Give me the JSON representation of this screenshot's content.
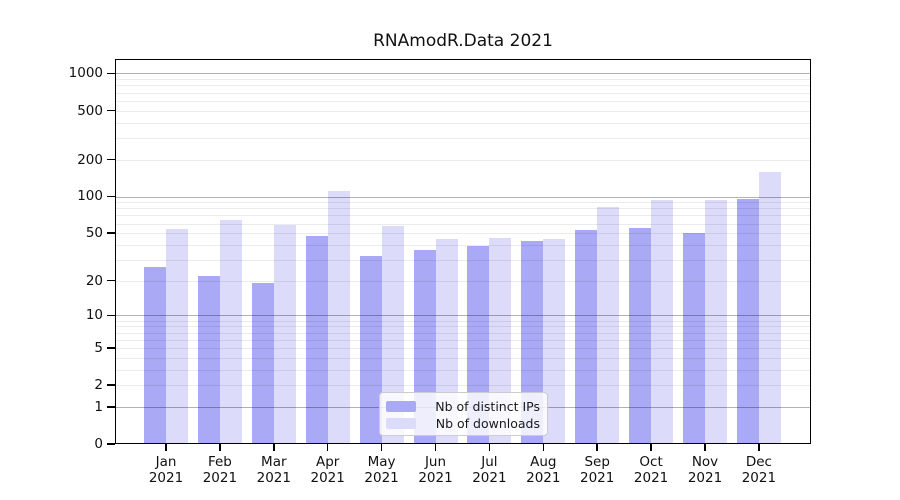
{
  "title": "RNAmodR.Data 2021",
  "chart_data": {
    "type": "bar",
    "title": "RNAmodR.Data 2021",
    "year_label": "2021",
    "months": [
      "Jan",
      "Feb",
      "Mar",
      "Apr",
      "May",
      "Jun",
      "Jul",
      "Aug",
      "Sep",
      "Oct",
      "Nov",
      "Dec"
    ],
    "series": [
      {
        "name": "Nb of distinct IPs",
        "color": "#a9a9f6",
        "values": [
          26,
          22,
          19,
          47,
          32,
          36,
          39,
          43,
          53,
          55,
          50,
          95
        ]
      },
      {
        "name": "Nb of downloads",
        "color": "#dcdcfa",
        "values": [
          54,
          64,
          58,
          111,
          57,
          45,
          46,
          45,
          82,
          94,
          94,
          158
        ]
      }
    ],
    "y_ticks": [
      0,
      1,
      2,
      5,
      10,
      20,
      50,
      100,
      200,
      500,
      1000
    ],
    "y_scale": "log10(value+1)",
    "ylim": [
      0,
      1000
    ],
    "grid": {
      "orientation": "horizontal",
      "major_at": [
        1,
        10,
        100,
        1000
      ],
      "minor": "2-9 per decade",
      "visible": true
    },
    "legend": {
      "position": "bottom-center-inside",
      "items": [
        "Nb of distinct IPs",
        "Nb of downloads"
      ]
    }
  },
  "colors": {
    "bar_distinct_ips": "#a9a9f6",
    "bar_downloads": "#dcdcfa",
    "axis": "#000000",
    "grid_major": "rgba(0,0,0,0.30)",
    "grid_minor": "rgba(0,0,0,0.08)",
    "background": "#ffffff",
    "legend_border": "#cccccc"
  }
}
